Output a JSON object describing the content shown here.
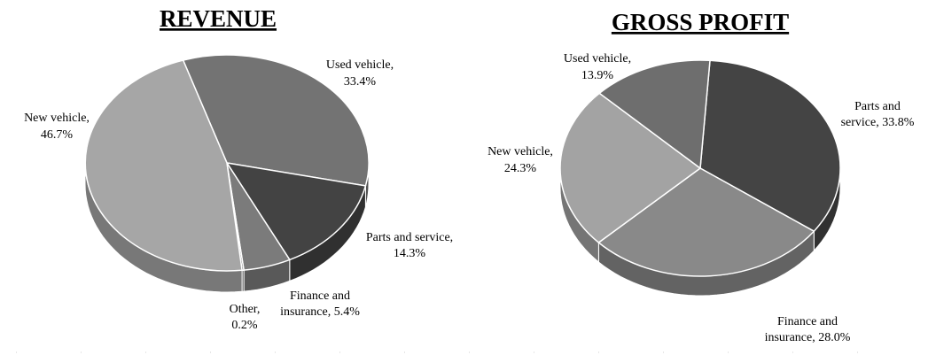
{
  "chart_data": [
    {
      "type": "pie",
      "title": "REVENUE",
      "slices": [
        {
          "name": "Used vehicle,",
          "value": 33.4,
          "label": "33.4%",
          "color": "#737373"
        },
        {
          "name": "Parts and service,",
          "value": 14.3,
          "label": "14.3%",
          "color": "#434343"
        },
        {
          "name": "Finance and",
          "name2": "insurance, 5.4%",
          "value": 5.4,
          "label": "",
          "color": "#7b7b7b"
        },
        {
          "name": "Other,",
          "value": 0.2,
          "label": "0.2%",
          "color": "#5a5a5a"
        },
        {
          "name": "New vehicle,",
          "value": 46.7,
          "label": "46.7%",
          "color": "#a6a6a6"
        }
      ]
    },
    {
      "type": "pie",
      "title": "GROSS PROFIT",
      "slices": [
        {
          "name": "Parts and",
          "name2": "service, 33.8%",
          "value": 33.8,
          "label": "",
          "color": "#444444"
        },
        {
          "name": "Finance and",
          "name2": "insurance, 28.0%",
          "value": 28.0,
          "label": "",
          "color": "#898989"
        },
        {
          "name": "New vehicle,",
          "value": 24.3,
          "label": "24.3%",
          "color": "#a3a3a3"
        },
        {
          "name": "Used vehicle,",
          "value": 13.9,
          "label": "13.9%",
          "color": "#6e6e6e"
        }
      ]
    }
  ]
}
